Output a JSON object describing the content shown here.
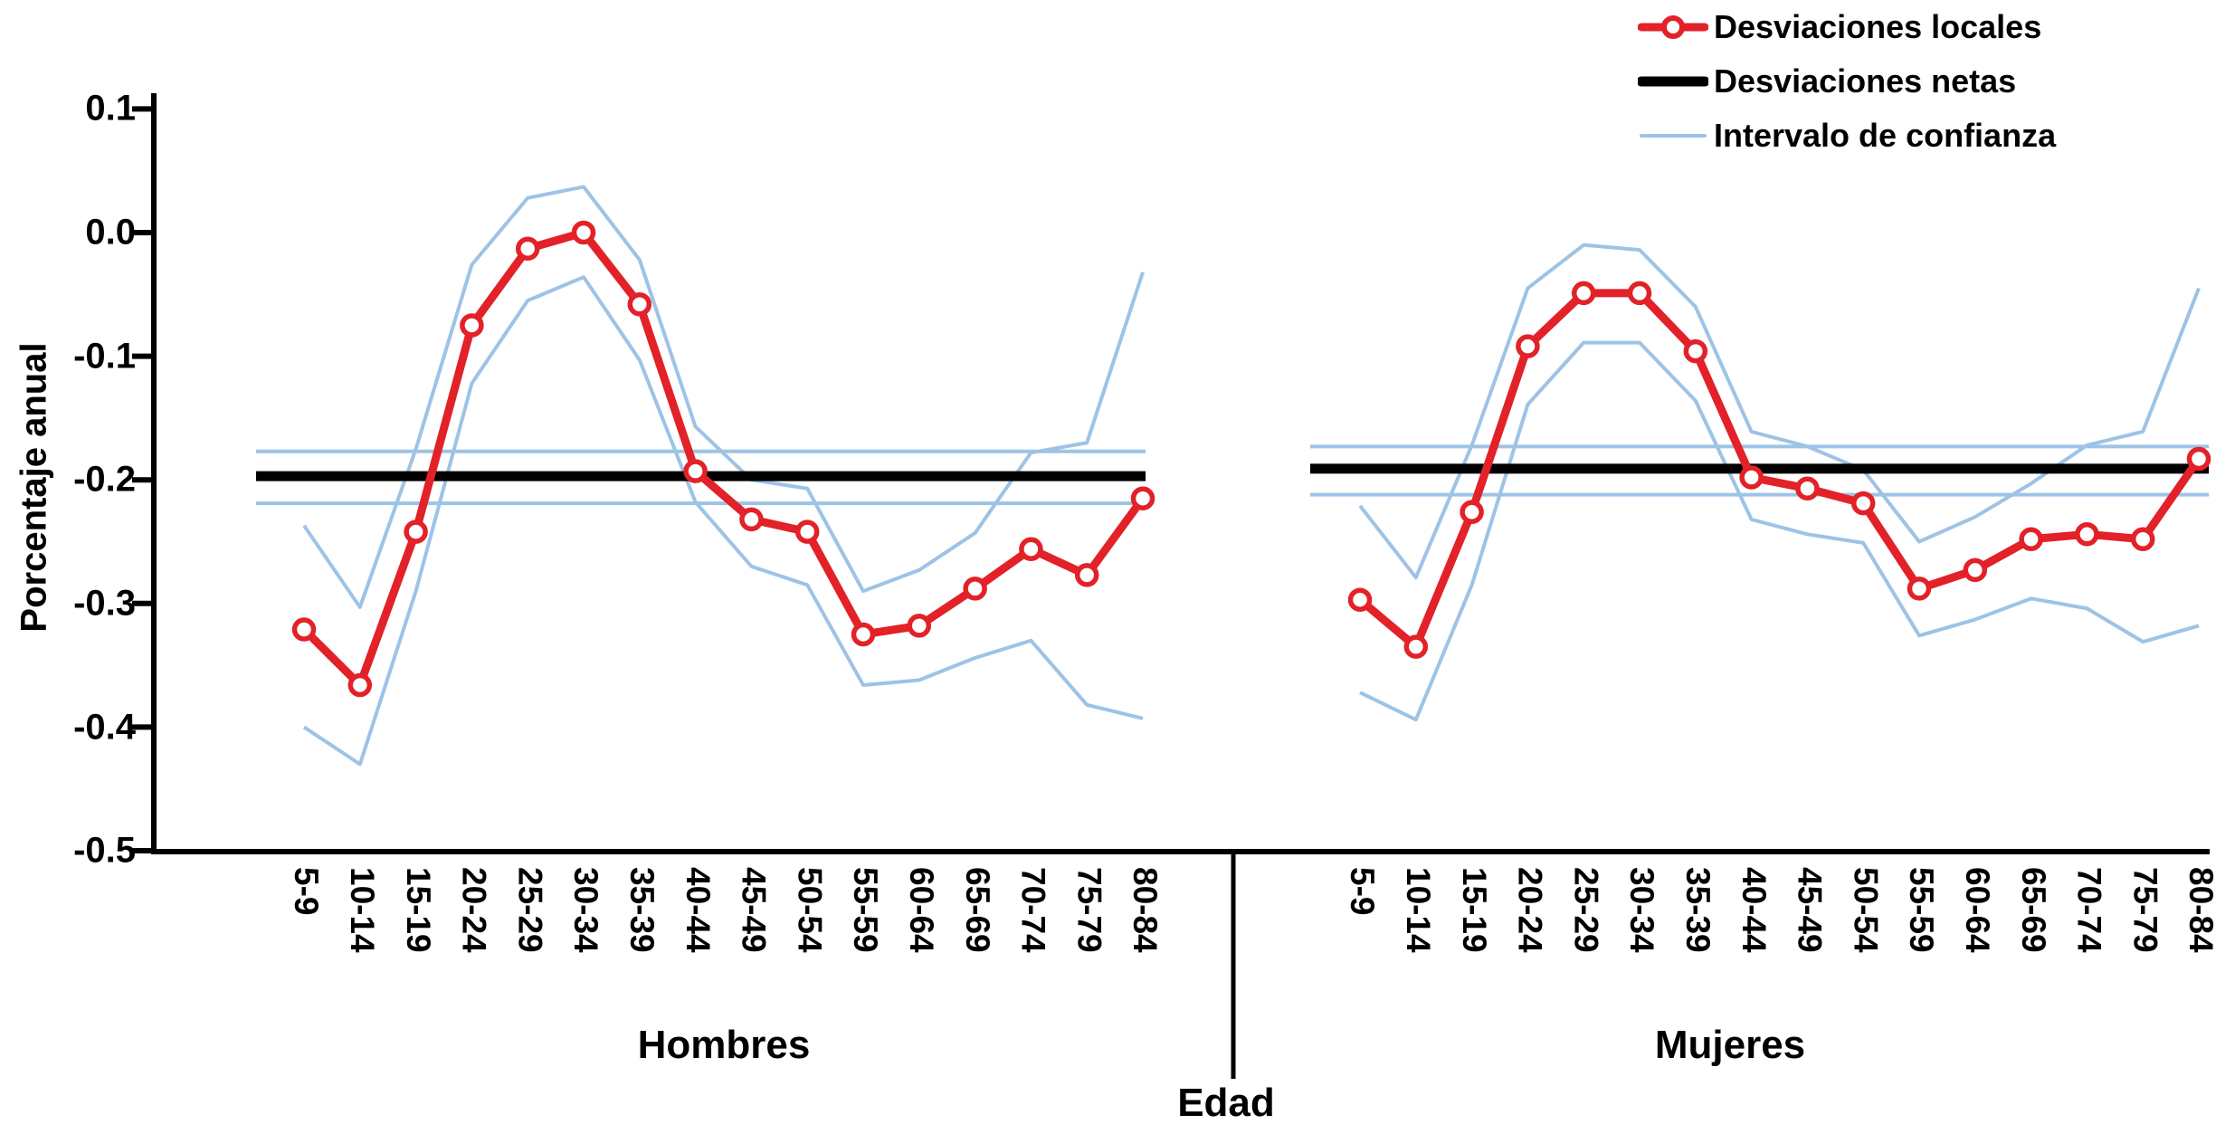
{
  "figure": {
    "y_axis": {
      "title": "Porcentaje anual",
      "tick_labels": [
        "0.1",
        "0.0",
        "-0.1",
        "-0.2",
        "-0.3",
        "-0.4",
        "-0.5"
      ],
      "tick_values": [
        0.1,
        0.0,
        -0.1,
        -0.2,
        -0.3,
        -0.4,
        -0.5
      ]
    },
    "x_axis": {
      "title": "Edad"
    },
    "legend": {
      "items": [
        {
          "label": "Desviaciones locales",
          "series_key": "locales"
        },
        {
          "label": "Desviaciones netas",
          "series_key": "netas"
        },
        {
          "label": "Intervalo de confianza",
          "series_key": "intervalo"
        }
      ],
      "position": "top-right"
    }
  },
  "colors": {
    "local_line": "#e22128",
    "net_line": "#000000",
    "ci_line": "#9dc3e6",
    "background": "#ffffff"
  },
  "chart_data": {
    "type": "line",
    "title": "",
    "xlabel": "Edad",
    "ylabel": "Porcentaje anual",
    "ylim": [
      -0.5,
      0.1
    ],
    "grid": false,
    "legend_position": "top-right",
    "categories": [
      "5-9",
      "10-14",
      "15-19",
      "20-24",
      "25-29",
      "30-34",
      "35-39",
      "40-44",
      "45-49",
      "50-54",
      "55-59",
      "60-64",
      "65-69",
      "70-74",
      "75-79",
      "80-84"
    ],
    "panels": [
      {
        "name": "Hombres",
        "series": [
          {
            "name": "Desviaciones locales",
            "values": [
              -0.321,
              -0.366,
              -0.242,
              -0.075,
              -0.013,
              0.0,
              -0.058,
              -0.193,
              -0.232,
              -0.242,
              -0.325,
              -0.318,
              -0.288,
              -0.256,
              -0.277,
              -0.215
            ]
          },
          {
            "name": "Desviaciones netas",
            "value": -0.197
          },
          {
            "name": "Intervalo de confianza (netas)",
            "upper": -0.177,
            "lower": -0.219
          },
          {
            "name": "Intervalo de confianza superior (locales)",
            "values": [
              -0.237,
              -0.303,
              -0.175,
              -0.026,
              0.028,
              0.037,
              -0.022,
              -0.157,
              -0.2,
              -0.207,
              -0.29,
              -0.273,
              -0.243,
              -0.178,
              -0.17,
              -0.032
            ]
          },
          {
            "name": "Intervalo de confianza inferior (locales)",
            "values": [
              -0.4,
              -0.43,
              -0.29,
              -0.122,
              -0.055,
              -0.036,
              -0.103,
              -0.218,
              -0.27,
              -0.285,
              -0.366,
              -0.362,
              -0.344,
              -0.33,
              -0.382,
              -0.393
            ]
          }
        ]
      },
      {
        "name": "Mujeres",
        "series": [
          {
            "name": "Desviaciones locales",
            "values": [
              -0.297,
              -0.335,
              -0.226,
              -0.092,
              -0.049,
              -0.049,
              -0.096,
              -0.198,
              -0.207,
              -0.219,
              -0.288,
              -0.273,
              -0.248,
              -0.244,
              -0.248,
              -0.183
            ]
          },
          {
            "name": "Desviaciones netas",
            "value": -0.191
          },
          {
            "name": "Intervalo de confianza (netas)",
            "upper": -0.173,
            "lower": -0.212
          },
          {
            "name": "Intervalo de confianza superior (locales)",
            "values": [
              -0.221,
              -0.279,
              -0.172,
              -0.045,
              -0.01,
              -0.014,
              -0.06,
              -0.161,
              -0.173,
              -0.192,
              -0.25,
              -0.23,
              -0.203,
              -0.172,
              -0.161,
              -0.045
            ]
          },
          {
            "name": "Intervalo de confianza inferior (locales)",
            "values": [
              -0.372,
              -0.394,
              -0.285,
              -0.139,
              -0.089,
              -0.089,
              -0.136,
              -0.232,
              -0.244,
              -0.251,
              -0.326,
              -0.313,
              -0.296,
              -0.304,
              -0.331,
              -0.318
            ]
          }
        ]
      }
    ]
  }
}
